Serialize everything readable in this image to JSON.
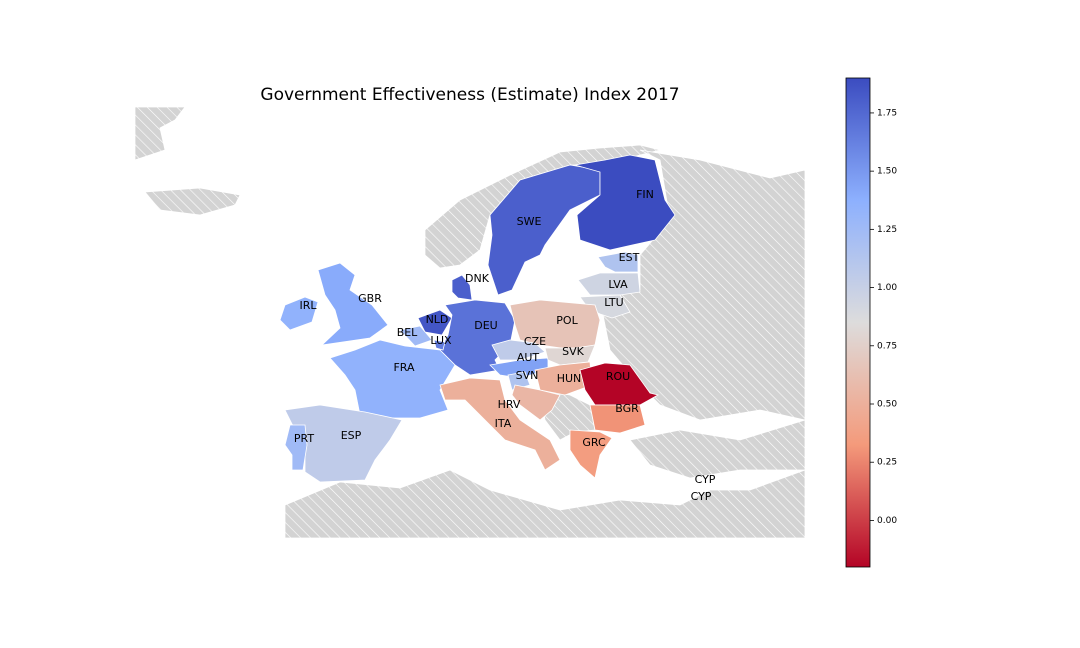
{
  "chart_data": {
    "type": "choropleth",
    "title": "Government Effectiveness (Estimate) Index 2017",
    "colormap": [
      "#b40426",
      "#f49a7b",
      "#dddcdc",
      "#8db0fe",
      "#3b4cc0"
    ],
    "clim": [
      -0.2,
      1.9
    ],
    "cticks": [
      {
        "value": 0,
        "label": "0.00"
      },
      {
        "value": 0.25,
        "label": "0.25"
      },
      {
        "value": 0.5,
        "label": "0.50"
      },
      {
        "value": 0.75,
        "label": "0.75"
      },
      {
        "value": 1,
        "label": "1.00"
      },
      {
        "value": 1.25,
        "label": "1.25"
      },
      {
        "value": 1.5,
        "label": "1.50"
      },
      {
        "value": 1.75,
        "label": "1.75"
      }
    ],
    "regions": [
      {
        "code": "SWE",
        "value": 1.8
      },
      {
        "code": "FIN",
        "value": 1.9
      },
      {
        "code": "DNK",
        "value": 1.8
      },
      {
        "code": "NLD",
        "value": 1.85
      },
      {
        "code": "DEU",
        "value": 1.7
      },
      {
        "code": "BEL",
        "value": 1.25
      },
      {
        "code": "LUX",
        "value": 1.65
      },
      {
        "code": "GBR",
        "value": 1.4
      },
      {
        "code": "IRL",
        "value": 1.35
      },
      {
        "code": "FRA",
        "value": 1.35
      },
      {
        "code": "ESP",
        "value": 1.05
      },
      {
        "code": "PRT",
        "value": 1.25
      },
      {
        "code": "EST",
        "value": 1.15
      },
      {
        "code": "LVA",
        "value": 0.95
      },
      {
        "code": "LTU",
        "value": 0.9
      },
      {
        "code": "POL",
        "value": 0.65
      },
      {
        "code": "CZE",
        "value": 1.05
      },
      {
        "code": "AUT",
        "value": 1.45
      },
      {
        "code": "SVK",
        "value": 0.8
      },
      {
        "code": "SVN",
        "value": 1.15
      },
      {
        "code": "HUN",
        "value": 0.5
      },
      {
        "code": "ROU",
        "value": -0.2
      },
      {
        "code": "BGR",
        "value": 0.3
      },
      {
        "code": "HRV",
        "value": 0.55
      },
      {
        "code": "ITA",
        "value": 0.5
      },
      {
        "code": "GRC",
        "value": 0.35
      },
      {
        "code": "CYP",
        "value": null
      },
      {
        "code": "CYP",
        "value": null
      }
    ]
  }
}
